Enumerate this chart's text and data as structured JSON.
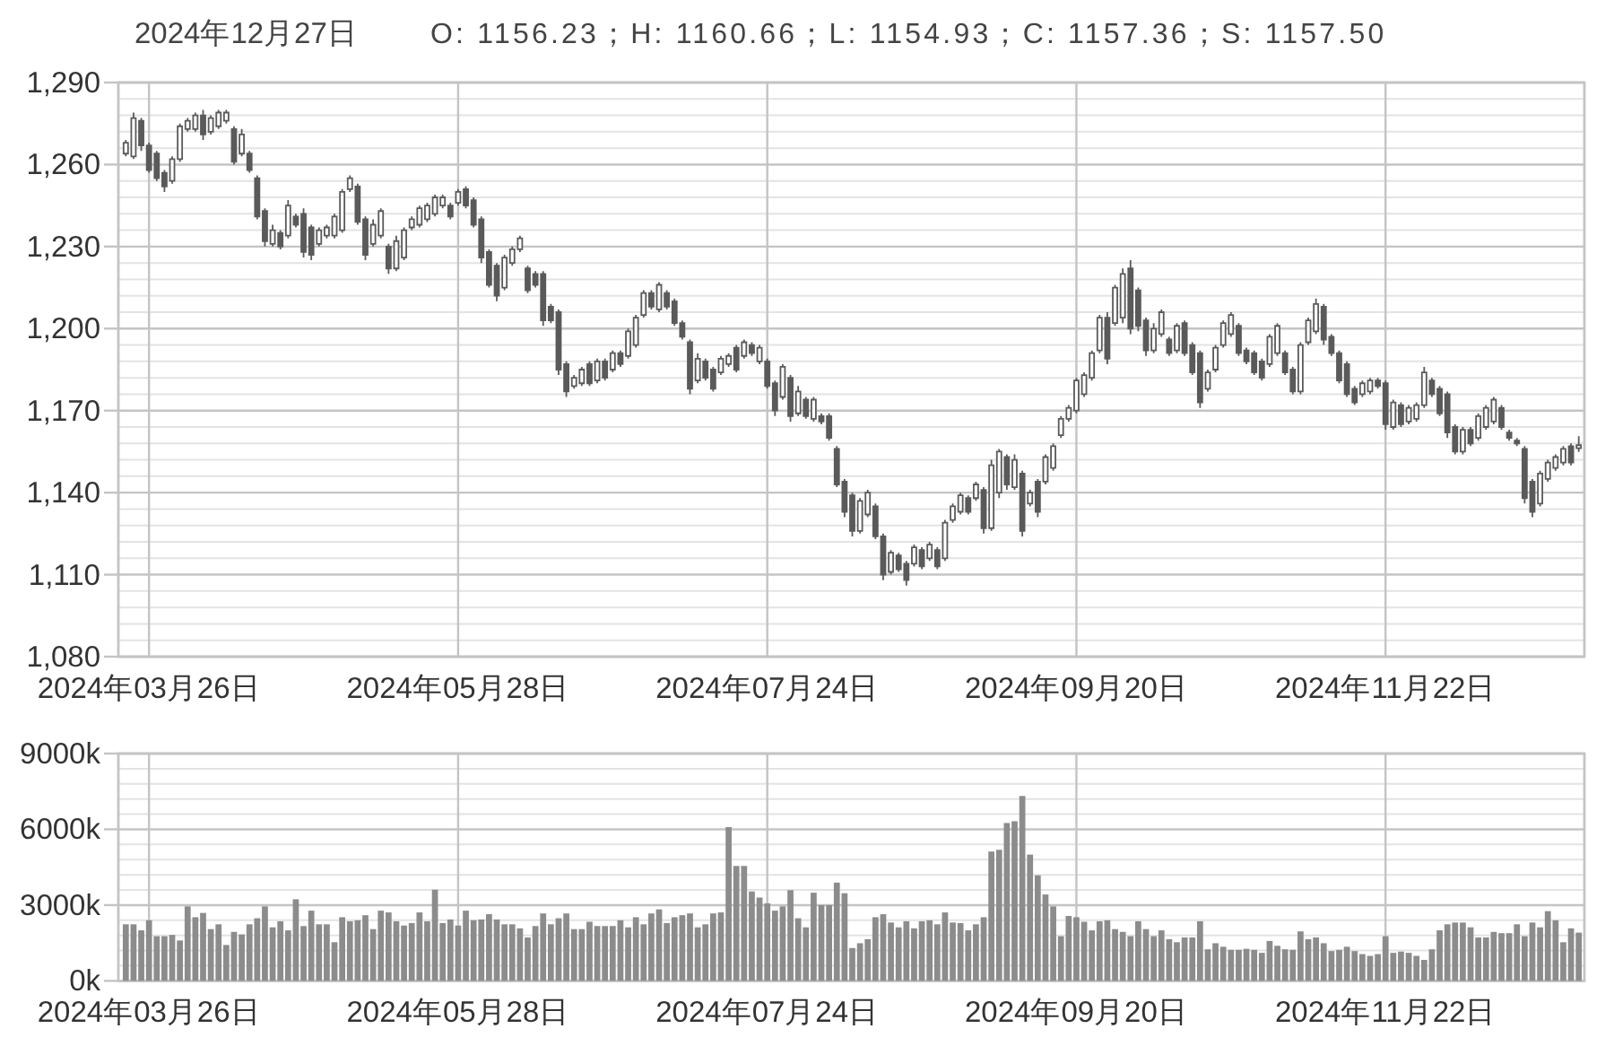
{
  "chart_data": [
    {
      "type": "candlestick",
      "title": "2024年12月27日",
      "subtitle": "O: 1156.23；H: 1160.66；L: 1154.93；C: 1157.36；S: 1157.50",
      "categories": [
        null,
        null,
        null,
        "2024年03月26日",
        null,
        null,
        null,
        null,
        null,
        null,
        null,
        null,
        null,
        null,
        null,
        null,
        null,
        null,
        null,
        null,
        null,
        null,
        null,
        null,
        null,
        null,
        null,
        null,
        null,
        null,
        null,
        null,
        null,
        null,
        null,
        null,
        null,
        null,
        null,
        null,
        null,
        null,
        null,
        "2024年05月28日",
        null,
        null,
        null,
        null,
        null,
        null,
        null,
        null,
        null,
        null,
        null,
        null,
        null,
        null,
        null,
        null,
        null,
        null,
        null,
        null,
        null,
        null,
        null,
        null,
        null,
        null,
        null,
        null,
        null,
        null,
        null,
        null,
        null,
        null,
        null,
        null,
        null,
        null,
        null,
        "2024年07月24日",
        null,
        null,
        null,
        null,
        null,
        null,
        null,
        null,
        null,
        null,
        null,
        null,
        null,
        null,
        null,
        null,
        null,
        null,
        null,
        null,
        null,
        null,
        null,
        null,
        null,
        null,
        null,
        null,
        null,
        null,
        null,
        null,
        null,
        null,
        null,
        null,
        null,
        null,
        null,
        "2024年09月20日",
        null,
        null,
        null,
        null,
        null,
        null,
        null,
        null,
        null,
        null,
        null,
        null,
        null,
        null,
        null,
        null,
        null,
        null,
        null,
        null,
        null,
        null,
        null,
        null,
        null,
        null,
        null,
        null,
        null,
        null,
        null,
        null,
        null,
        null,
        null,
        null,
        null,
        null,
        null,
        "2024年11月22日",
        null,
        null,
        null,
        null,
        null,
        null,
        null,
        null,
        null,
        null,
        null,
        null,
        null,
        null,
        null,
        null,
        null,
        null,
        null,
        null,
        null,
        null,
        null,
        null,
        null
      ],
      "ohlc": [
        [
          1264,
          1269,
          1263,
          1268
        ],
        [
          1263,
          1279,
          1262,
          1277
        ],
        [
          1276,
          1277,
          1265,
          1267
        ],
        [
          1267,
          1268,
          1257,
          1258
        ],
        [
          1264,
          1265,
          1254,
          1255
        ],
        [
          1257,
          1258,
          1250,
          1252
        ],
        [
          1254,
          1263,
          1253,
          1262
        ],
        [
          1262,
          1275,
          1261,
          1274
        ],
        [
          1273,
          1277,
          1272,
          1276
        ],
        [
          1273,
          1279,
          1272,
          1278
        ],
        [
          1278,
          1280,
          1269,
          1271
        ],
        [
          1272,
          1278,
          1271,
          1277
        ],
        [
          1274,
          1280,
          1273,
          1279
        ],
        [
          1276,
          1280,
          1275,
          1279
        ],
        [
          1273,
          1274,
          1260,
          1261
        ],
        [
          1264,
          1273,
          1263,
          1271
        ],
        [
          1264,
          1265,
          1257,
          1258
        ],
        [
          1255,
          1256,
          1240,
          1241
        ],
        [
          1243,
          1244,
          1230,
          1232
        ],
        [
          1231,
          1238,
          1230,
          1236
        ],
        [
          1235,
          1236,
          1229,
          1230
        ],
        [
          1234,
          1247,
          1233,
          1245
        ],
        [
          1241,
          1242,
          1237,
          1238
        ],
        [
          1242,
          1244,
          1226,
          1228
        ],
        [
          1237,
          1238,
          1225,
          1227
        ],
        [
          1231,
          1237,
          1230,
          1236
        ],
        [
          1234,
          1238,
          1233,
          1237
        ],
        [
          1234,
          1242,
          1233,
          1241
        ],
        [
          1236,
          1251,
          1235,
          1250
        ],
        [
          1251,
          1256,
          1250,
          1255
        ],
        [
          1252,
          1253,
          1238,
          1239
        ],
        [
          1240,
          1241,
          1225,
          1227
        ],
        [
          1231,
          1240,
          1230,
          1238
        ],
        [
          1234,
          1244,
          1233,
          1243
        ],
        [
          1230,
          1231,
          1220,
          1222
        ],
        [
          1222,
          1234,
          1221,
          1232
        ],
        [
          1226,
          1237,
          1225,
          1236
        ],
        [
          1237,
          1241,
          1236,
          1240
        ],
        [
          1238,
          1245,
          1237,
          1244
        ],
        [
          1240,
          1246,
          1239,
          1245
        ],
        [
          1242,
          1249,
          1241,
          1248
        ],
        [
          1245,
          1249,
          1244,
          1248
        ],
        [
          1245,
          1246,
          1240,
          1241
        ],
        [
          1246,
          1251,
          1245,
          1250
        ],
        [
          1251,
          1252,
          1244,
          1245
        ],
        [
          1247,
          1248,
          1237,
          1238
        ],
        [
          1240,
          1241,
          1224,
          1226
        ],
        [
          1228,
          1229,
          1215,
          1216
        ],
        [
          1223,
          1224,
          1210,
          1212
        ],
        [
          1215,
          1227,
          1214,
          1226
        ],
        [
          1224,
          1230,
          1223,
          1229
        ],
        [
          1229,
          1234,
          1228,
          1233
        ],
        [
          1222,
          1223,
          1213,
          1214
        ],
        [
          1220,
          1221,
          1215,
          1216
        ],
        [
          1220,
          1221,
          1201,
          1203
        ],
        [
          1208,
          1209,
          1202,
          1203
        ],
        [
          1206,
          1207,
          1183,
          1185
        ],
        [
          1187,
          1188,
          1175,
          1177
        ],
        [
          1179,
          1183,
          1178,
          1182
        ],
        [
          1180,
          1186,
          1179,
          1185
        ],
        [
          1187,
          1188,
          1179,
          1180
        ],
        [
          1181,
          1189,
          1180,
          1188
        ],
        [
          1188,
          1189,
          1181,
          1182
        ],
        [
          1185,
          1192,
          1184,
          1191
        ],
        [
          1191,
          1192,
          1186,
          1187
        ],
        [
          1190,
          1200,
          1189,
          1199
        ],
        [
          1194,
          1205,
          1193,
          1204
        ],
        [
          1205,
          1214,
          1204,
          1213
        ],
        [
          1213,
          1214,
          1207,
          1208
        ],
        [
          1207,
          1217,
          1206,
          1216
        ],
        [
          1213,
          1214,
          1207,
          1208
        ],
        [
          1210,
          1211,
          1201,
          1202
        ],
        [
          1202,
          1203,
          1196,
          1197
        ],
        [
          1195,
          1196,
          1176,
          1178
        ],
        [
          1181,
          1191,
          1180,
          1189
        ],
        [
          1188,
          1189,
          1181,
          1182
        ],
        [
          1185,
          1186,
          1177,
          1178
        ],
        [
          1184,
          1190,
          1183,
          1189
        ],
        [
          1187,
          1191,
          1186,
          1190
        ],
        [
          1193,
          1194,
          1184,
          1185
        ],
        [
          1190,
          1196,
          1189,
          1195
        ],
        [
          1194,
          1195,
          1190,
          1191
        ],
        [
          1188,
          1194,
          1187,
          1193
        ],
        [
          1188,
          1189,
          1178,
          1179
        ],
        [
          1180,
          1181,
          1168,
          1170
        ],
        [
          1175,
          1187,
          1174,
          1186
        ],
        [
          1182,
          1183,
          1166,
          1168
        ],
        [
          1169,
          1179,
          1168,
          1177
        ],
        [
          1174,
          1175,
          1167,
          1168
        ],
        [
          1167,
          1175,
          1166,
          1174
        ],
        [
          1168,
          1169,
          1165,
          1166
        ],
        [
          1168,
          1169,
          1159,
          1160
        ],
        [
          1156,
          1157,
          1142,
          1143
        ],
        [
          1144,
          1145,
          1131,
          1133
        ],
        [
          1139,
          1140,
          1124,
          1126
        ],
        [
          1126,
          1138,
          1125,
          1137
        ],
        [
          1132,
          1141,
          1131,
          1140
        ],
        [
          1135,
          1136,
          1123,
          1124
        ],
        [
          1124,
          1125,
          1108,
          1110
        ],
        [
          1111,
          1119,
          1110,
          1118
        ],
        [
          1117,
          1118,
          1111,
          1112
        ],
        [
          1114,
          1115,
          1106,
          1108
        ],
        [
          1114,
          1121,
          1113,
          1120
        ],
        [
          1119,
          1120,
          1112,
          1113
        ],
        [
          1116,
          1122,
          1115,
          1121
        ],
        [
          1119,
          1120,
          1112,
          1113
        ],
        [
          1116,
          1130,
          1115,
          1129
        ],
        [
          1130,
          1136,
          1129,
          1135
        ],
        [
          1133,
          1140,
          1132,
          1139
        ],
        [
          1138,
          1139,
          1132,
          1133
        ],
        [
          1138,
          1144,
          1137,
          1143
        ],
        [
          1141,
          1142,
          1125,
          1127
        ],
        [
          1127,
          1152,
          1126,
          1150
        ],
        [
          1140,
          1156,
          1138,
          1155
        ],
        [
          1153,
          1154,
          1141,
          1143
        ],
        [
          1142,
          1154,
          1141,
          1152
        ],
        [
          1147,
          1148,
          1124,
          1126
        ],
        [
          1136,
          1141,
          1135,
          1140
        ],
        [
          1144,
          1145,
          1131,
          1133
        ],
        [
          1144,
          1154,
          1143,
          1153
        ],
        [
          1149,
          1158,
          1148,
          1157
        ],
        [
          1161,
          1168,
          1160,
          1167
        ],
        [
          1167,
          1172,
          1166,
          1171
        ],
        [
          1170,
          1182,
          1169,
          1181
        ],
        [
          1176,
          1184,
          1175,
          1183
        ],
        [
          1182,
          1192,
          1181,
          1191
        ],
        [
          1192,
          1205,
          1191,
          1204
        ],
        [
          1204,
          1206,
          1187,
          1189
        ],
        [
          1202,
          1216,
          1201,
          1215
        ],
        [
          1204,
          1222,
          1202,
          1220
        ],
        [
          1222,
          1225,
          1198,
          1200
        ],
        [
          1214,
          1215,
          1199,
          1201
        ],
        [
          1203,
          1204,
          1190,
          1192
        ],
        [
          1192,
          1202,
          1191,
          1200
        ],
        [
          1198,
          1207,
          1197,
          1206
        ],
        [
          1196,
          1197,
          1190,
          1191
        ],
        [
          1192,
          1202,
          1191,
          1201
        ],
        [
          1202,
          1203,
          1190,
          1191
        ],
        [
          1194,
          1195,
          1183,
          1184
        ],
        [
          1191,
          1192,
          1171,
          1173
        ],
        [
          1178,
          1185,
          1177,
          1184
        ],
        [
          1185,
          1194,
          1184,
          1193
        ],
        [
          1194,
          1203,
          1193,
          1202
        ],
        [
          1198,
          1206,
          1197,
          1205
        ],
        [
          1201,
          1202,
          1190,
          1191
        ],
        [
          1192,
          1193,
          1187,
          1188
        ],
        [
          1191,
          1192,
          1183,
          1184
        ],
        [
          1188,
          1189,
          1181,
          1182
        ],
        [
          1187,
          1198,
          1186,
          1197
        ],
        [
          1191,
          1202,
          1190,
          1201
        ],
        [
          1191,
          1192,
          1183,
          1184
        ],
        [
          1185,
          1186,
          1176,
          1177
        ],
        [
          1177,
          1195,
          1176,
          1194
        ],
        [
          1195,
          1204,
          1194,
          1203
        ],
        [
          1199,
          1211,
          1198,
          1209
        ],
        [
          1208,
          1209,
          1194,
          1196
        ],
        [
          1197,
          1198,
          1190,
          1191
        ],
        [
          1191,
          1192,
          1180,
          1181
        ],
        [
          1187,
          1188,
          1175,
          1176
        ],
        [
          1178,
          1179,
          1172,
          1173
        ],
        [
          1176,
          1181,
          1175,
          1180
        ],
        [
          1177,
          1182,
          1176,
          1181
        ],
        [
          1181,
          1182,
          1178,
          1179
        ],
        [
          1180,
          1181,
          1163,
          1165
        ],
        [
          1164,
          1174,
          1163,
          1173
        ],
        [
          1172,
          1173,
          1164,
          1165
        ],
        [
          1166,
          1172,
          1165,
          1171
        ],
        [
          1167,
          1173,
          1166,
          1172
        ],
        [
          1172,
          1186,
          1171,
          1184
        ],
        [
          1181,
          1182,
          1175,
          1176
        ],
        [
          1178,
          1179,
          1168,
          1169
        ],
        [
          1176,
          1177,
          1160,
          1162
        ],
        [
          1164,
          1165,
          1154,
          1155
        ],
        [
          1155,
          1164,
          1154,
          1163
        ],
        [
          1163,
          1164,
          1157,
          1158
        ],
        [
          1160,
          1169,
          1159,
          1168
        ],
        [
          1164,
          1172,
          1163,
          1171
        ],
        [
          1166,
          1175,
          1165,
          1174
        ],
        [
          1171,
          1172,
          1163,
          1164
        ],
        [
          1162,
          1163,
          1159,
          1160
        ],
        [
          1159,
          1160,
          1157,
          1158
        ],
        [
          1156,
          1157,
          1136,
          1138
        ],
        [
          1144,
          1145,
          1131,
          1133
        ],
        [
          1136,
          1148,
          1135,
          1147
        ],
        [
          1145,
          1152,
          1144,
          1151
        ],
        [
          1149,
          1154,
          1148,
          1153
        ],
        [
          1151,
          1157,
          1150,
          1156
        ],
        [
          1157,
          1158,
          1150,
          1151
        ],
        [
          1156.23,
          1160.66,
          1154.93,
          1157.36
        ]
      ],
      "color": "#5a5a5a",
      "ylim": [
        1080,
        1290
      ],
      "yticks": [
        {
          "value": 1080,
          "label": "1,080"
        },
        {
          "value": 1086,
          "label": null
        },
        {
          "value": 1092,
          "label": null
        },
        {
          "value": 1098,
          "label": null
        },
        {
          "value": 1104,
          "label": null
        },
        {
          "value": 1110,
          "label": "1,110"
        },
        {
          "value": 1116,
          "label": null
        },
        {
          "value": 1122,
          "label": null
        },
        {
          "value": 1128,
          "label": null
        },
        {
          "value": 1134,
          "label": null
        },
        {
          "value": 1140,
          "label": "1,140"
        },
        {
          "value": 1146,
          "label": null
        },
        {
          "value": 1152,
          "label": null
        },
        {
          "value": 1158,
          "label": null
        },
        {
          "value": 1164,
          "label": null
        },
        {
          "value": 1170,
          "label": "1,170"
        },
        {
          "value": 1176,
          "label": null
        },
        {
          "value": 1182,
          "label": null
        },
        {
          "value": 1188,
          "label": null
        },
        {
          "value": 1194,
          "label": null
        },
        {
          "value": 1200,
          "label": "1,200"
        },
        {
          "value": 1206,
          "label": null
        },
        {
          "value": 1212,
          "label": null
        },
        {
          "value": 1218,
          "label": null
        },
        {
          "value": 1224,
          "label": null
        },
        {
          "value": 1230,
          "label": "1,230"
        },
        {
          "value": 1236,
          "label": null
        },
        {
          "value": 1242,
          "label": null
        },
        {
          "value": 1248,
          "label": null
        },
        {
          "value": 1254,
          "label": null
        },
        {
          "value": 1260,
          "label": "1,260"
        },
        {
          "value": 1266,
          "label": null
        },
        {
          "value": 1272,
          "label": null
        },
        {
          "value": 1278,
          "label": null
        },
        {
          "value": 1284,
          "label": null
        },
        {
          "value": 1290,
          "label": "1,290"
        }
      ],
      "grid": true
    },
    {
      "type": "bar",
      "categories": [
        null,
        null,
        null,
        "2024年03月26日",
        null,
        null,
        null,
        null,
        null,
        null,
        null,
        null,
        null,
        null,
        null,
        null,
        null,
        null,
        null,
        null,
        null,
        null,
        null,
        null,
        null,
        null,
        null,
        null,
        null,
        null,
        null,
        null,
        null,
        null,
        null,
        null,
        null,
        null,
        null,
        null,
        null,
        null,
        null,
        "2024年05月28日",
        null,
        null,
        null,
        null,
        null,
        null,
        null,
        null,
        null,
        null,
        null,
        null,
        null,
        null,
        null,
        null,
        null,
        null,
        null,
        null,
        null,
        null,
        null,
        null,
        null,
        null,
        null,
        null,
        null,
        null,
        null,
        null,
        null,
        null,
        null,
        null,
        null,
        null,
        null,
        "2024年07月24日",
        null,
        null,
        null,
        null,
        null,
        null,
        null,
        null,
        null,
        null,
        null,
        null,
        null,
        null,
        null,
        null,
        null,
        null,
        null,
        null,
        null,
        null,
        null,
        null,
        null,
        null,
        null,
        null,
        null,
        null,
        null,
        null,
        null,
        null,
        null,
        null,
        null,
        null,
        null,
        "2024年09月20日",
        null,
        null,
        null,
        null,
        null,
        null,
        null,
        null,
        null,
        null,
        null,
        null,
        null,
        null,
        null,
        null,
        null,
        null,
        null,
        null,
        null,
        null,
        null,
        null,
        null,
        null,
        null,
        null,
        null,
        null,
        null,
        null,
        null,
        null,
        null,
        null,
        null,
        null,
        null,
        "2024年11月22日",
        null,
        null,
        null,
        null,
        null,
        null,
        null,
        null,
        null,
        null,
        null,
        null,
        null,
        null,
        null,
        null,
        null,
        null,
        null,
        null,
        null,
        null,
        null,
        null,
        null
      ],
      "values": [
        2240,
        2240,
        2000,
        2400,
        1770,
        1770,
        1820,
        1600,
        2950,
        2520,
        2690,
        2050,
        2240,
        1420,
        1940,
        1840,
        2240,
        2480,
        2950,
        2120,
        2360,
        2000,
        3230,
        2170,
        2780,
        2240,
        2240,
        1530,
        2520,
        2360,
        2400,
        2600,
        2050,
        2780,
        2710,
        2360,
        2190,
        2290,
        2710,
        2360,
        3610,
        2290,
        2430,
        2190,
        2780,
        2400,
        2430,
        2640,
        2430,
        2240,
        2240,
        2080,
        1720,
        2170,
        2670,
        2240,
        2480,
        2670,
        2050,
        2050,
        2340,
        2170,
        2170,
        2170,
        2400,
        2120,
        2520,
        2240,
        2670,
        2830,
        2290,
        2520,
        2600,
        2670,
        2120,
        2240,
        2670,
        2710,
        6090,
        4550,
        4550,
        3540,
        3300,
        3070,
        2780,
        2950,
        3590,
        2480,
        2120,
        3490,
        3000,
        3000,
        3890,
        3470,
        1300,
        1490,
        1650,
        2520,
        2640,
        2310,
        2120,
        2360,
        2080,
        2360,
        2400,
        2240,
        2710,
        2310,
        2290,
        2000,
        2240,
        2520,
        5120,
        5190,
        6250,
        6320,
        7320,
        5000,
        4180,
        3420,
        2950,
        1770,
        2570,
        2520,
        2340,
        2000,
        2360,
        2400,
        2050,
        1940,
        1770,
        2360,
        2050,
        1770,
        2000,
        1650,
        1530,
        1720,
        1720,
        2360,
        1250,
        1490,
        1350,
        1230,
        1230,
        1270,
        1230,
        1110,
        1580,
        1390,
        1250,
        1230,
        1960,
        1650,
        1720,
        1490,
        1180,
        1230,
        1350,
        1180,
        1060,
        990,
        1060,
        1770,
        1110,
        1160,
        1110,
        990,
        830,
        1250,
        2000,
        2240,
        2310,
        2310,
        2120,
        1720,
        1720,
        1940,
        1890,
        1890,
        2240,
        1770,
        2310,
        2120,
        2760,
        2400,
        1530,
        2080,
        1910
      ],
      "color": "#8c8c8c",
      "ylim": [
        0,
        9000
      ],
      "yticks": [
        {
          "value": 0,
          "label": "0k"
        },
        {
          "value": 600,
          "label": null
        },
        {
          "value": 1200,
          "label": null
        },
        {
          "value": 1800,
          "label": null
        },
        {
          "value": 2400,
          "label": null
        },
        {
          "value": 3000,
          "label": "3000k"
        },
        {
          "value": 3600,
          "label": null
        },
        {
          "value": 4200,
          "label": null
        },
        {
          "value": 4800,
          "label": null
        },
        {
          "value": 5400,
          "label": null
        },
        {
          "value": 6000,
          "label": "6000k"
        },
        {
          "value": 6600,
          "label": null
        },
        {
          "value": 7200,
          "label": null
        },
        {
          "value": 7800,
          "label": null
        },
        {
          "value": 8400,
          "label": null
        },
        {
          "value": 9000,
          "label": "9000k"
        }
      ],
      "grid": true
    }
  ]
}
